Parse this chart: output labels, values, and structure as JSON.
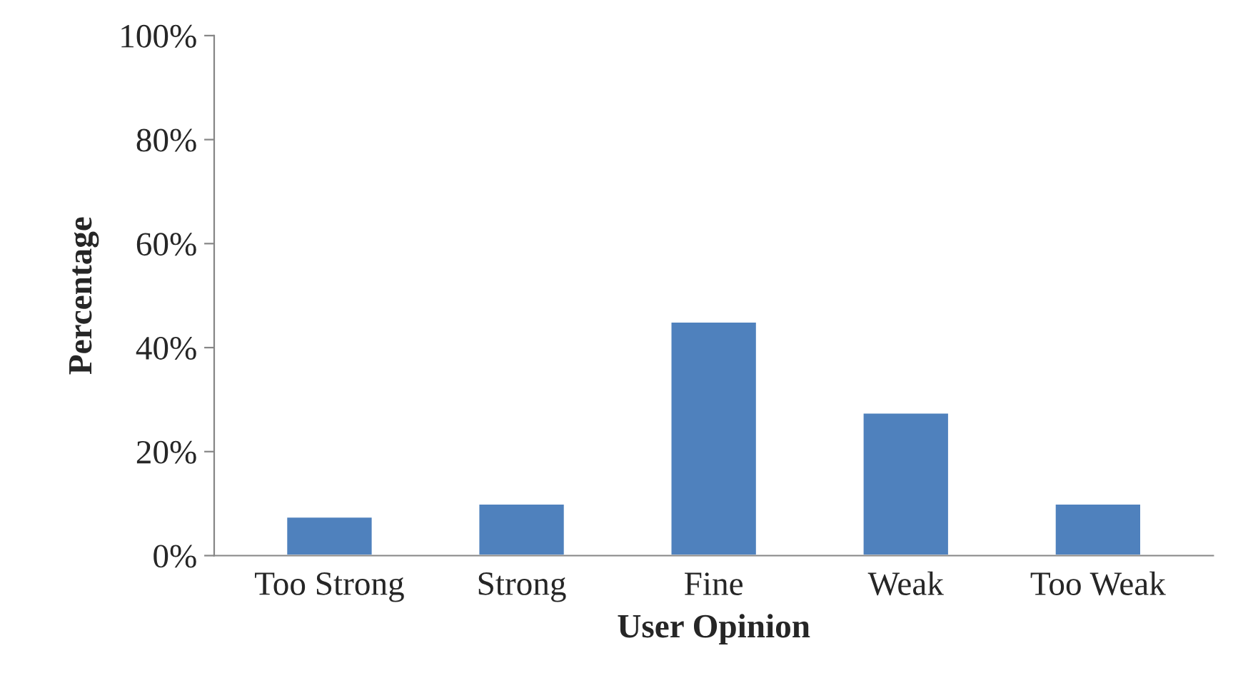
{
  "chart_data": {
    "type": "bar",
    "xlabel": "User Opinion",
    "ylabel": "Percentage",
    "categories": [
      "Too Strong",
      "Strong",
      "Fine",
      "Weak",
      "Too Weak"
    ],
    "values": [
      7.5,
      10,
      45,
      27.5,
      10
    ],
    "color": "#4f81bd",
    "ylim": [
      0,
      100
    ],
    "yticks": [
      {
        "value": 0,
        "label": "0%"
      },
      {
        "value": 20,
        "label": "20%"
      },
      {
        "value": 40,
        "label": "40%"
      },
      {
        "value": 60,
        "label": "60%"
      },
      {
        "value": 80,
        "label": "80%"
      },
      {
        "value": 100,
        "label": "100%"
      }
    ],
    "grid": false,
    "legend": false
  }
}
